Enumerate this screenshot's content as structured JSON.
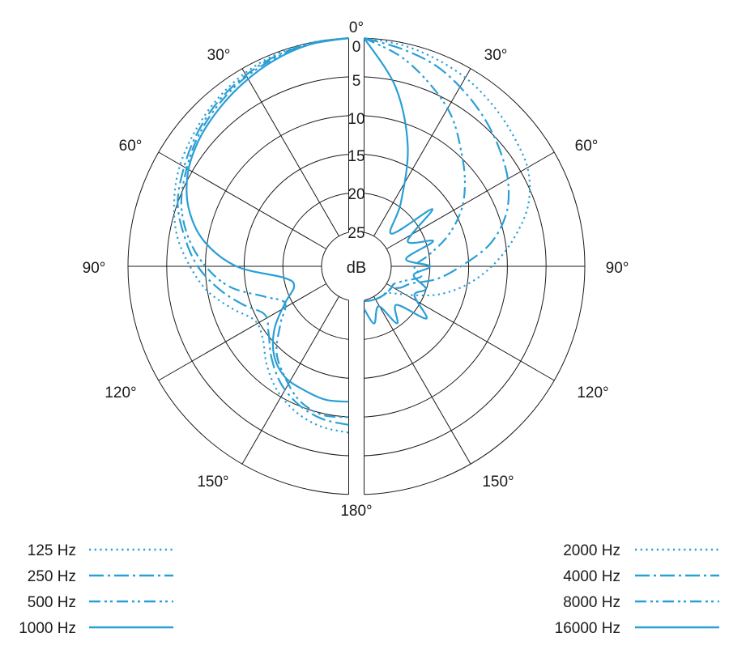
{
  "chart_data": {
    "type": "polar-line",
    "unit_label": "dB",
    "radial_ticks": [
      "0",
      "5",
      "10",
      "15",
      "20",
      "25"
    ],
    "radial_range": [
      0,
      25
    ],
    "angle_labels": {
      "a0": "0°",
      "a30r": "30°",
      "a60r": "60°",
      "a90r": "90°",
      "a120r": "120°",
      "a150r": "150°",
      "a180": "180°",
      "a30l": "30°",
      "a60l": "60°",
      "a90l": "90°",
      "a120l": "120°",
      "a150l": "150°"
    },
    "angles_deg": [
      0,
      10,
      20,
      30,
      40,
      50,
      60,
      70,
      80,
      90,
      100,
      110,
      120,
      130,
      140,
      150,
      160,
      170,
      180
    ],
    "left_half": {
      "series": [
        {
          "name": "125 Hz",
          "color": "#2a9fd6",
          "dash": "dotted",
          "db": [
            0,
            0.2,
            0.6,
            1.3,
            2.2,
            3.2,
            4.2,
            5.5,
            7,
            9,
            11,
            13.5,
            15.5,
            15,
            13,
            11,
            9.5,
            8.5,
            8
          ]
        },
        {
          "name": "250 Hz",
          "color": "#2a9fd6",
          "dash": "dash-dot",
          "db": [
            0,
            0.3,
            0.8,
            1.6,
            2.5,
            3.6,
            4.8,
            6,
            8,
            10,
            12.5,
            15,
            17,
            16,
            14,
            12,
            10.5,
            9.5,
            9
          ]
        },
        {
          "name": "500 Hz",
          "color": "#2a9fd6",
          "dash": "dash-dot-dot",
          "db": [
            0,
            0.3,
            1,
            1.8,
            2.8,
            3.9,
            5.2,
            6.5,
            8.5,
            11,
            14,
            18,
            20,
            18,
            15,
            13,
            11,
            10,
            10
          ]
        },
        {
          "name": "1000 Hz",
          "color": "#2a9fd6",
          "dash": "solid",
          "db": [
            0,
            0.4,
            1.2,
            2.2,
            3.2,
            4.2,
            5.5,
            7.5,
            10.5,
            15,
            21,
            22,
            20,
            17,
            14.5,
            13,
            12.5,
            12,
            12
          ]
        }
      ]
    },
    "right_half": {
      "series": [
        {
          "name": "2000 Hz",
          "color": "#2a9fd6",
          "dash": "dotted",
          "db": [
            0,
            0.5,
            1.2,
            2,
            3,
            4,
            5,
            7,
            10,
            13,
            16,
            19,
            22,
            24,
            25,
            25,
            25,
            25,
            25
          ]
        },
        {
          "name": "4000 Hz",
          "color": "#2a9fd6",
          "dash": "dash-dot",
          "db": [
            0,
            1,
            2,
            3.5,
            5,
            6.5,
            8,
            10,
            13,
            17,
            20,
            23,
            24,
            25,
            25,
            25,
            25,
            25,
            25
          ]
        },
        {
          "name": "8000 Hz",
          "color": "#2a9fd6",
          "dash": "dash-dot-dot",
          "db": [
            0,
            2,
            4.5,
            7,
            10,
            12.5,
            15,
            18,
            21,
            23,
            22,
            24,
            25,
            25,
            25,
            25,
            25,
            25,
            25
          ]
        },
        {
          "name": "16000 Hz",
          "color": "#2a9fd6",
          "dash": "solid",
          "db": [
            0,
            6,
            13,
            20,
            24,
            18,
            23,
            20,
            24,
            21,
            23,
            21,
            22,
            19,
            23,
            21,
            24,
            22,
            24
          ]
        }
      ]
    },
    "legend_left": [
      {
        "label": "125 Hz",
        "dash": "dotted"
      },
      {
        "label": "250 Hz",
        "dash": "dash-dot"
      },
      {
        "label": "500 Hz",
        "dash": "dash-dot-dot"
      },
      {
        "label": "1000 Hz",
        "dash": "solid"
      }
    ],
    "legend_right": [
      {
        "label": "2000 Hz",
        "dash": "dotted"
      },
      {
        "label": "4000 Hz",
        "dash": "dash-dot"
      },
      {
        "label": "8000 Hz",
        "dash": "dash-dot-dot"
      },
      {
        "label": "16000 Hz",
        "dash": "solid"
      }
    ],
    "series_color": "#2a9fd6",
    "grid_color": "#1a1a1a"
  }
}
